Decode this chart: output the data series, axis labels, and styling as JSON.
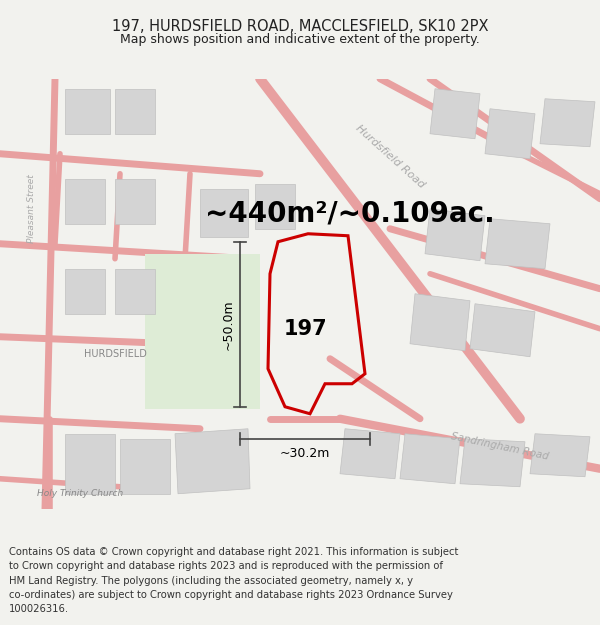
{
  "title_line1": "197, HURDSFIELD ROAD, MACCLESFIELD, SK10 2PX",
  "title_line2": "Map shows position and indicative extent of the property.",
  "area_text": "~440m²/~0.109ac.",
  "dim_vertical": "~50.0m",
  "dim_horizontal": "~30.2m",
  "label_197": "197",
  "label_hurdsfield": "HURDSFIELD",
  "label_pleasant_street": "Pleasant Street",
  "label_hurdsfield_road": "Hurdsfield Road",
  "label_sandringham_road": "Sandringham Road",
  "label_holy_trinity": "Holy Trinity Church",
  "footer_lines": [
    "Contains OS data © Crown copyright and database right 2021. This information is subject",
    "to Crown copyright and database rights 2023 and is reproduced with the permission of",
    "HM Land Registry. The polygons (including the associated geometry, namely x, y",
    "co-ordinates) are subject to Crown copyright and database rights 2023 Ordnance Survey",
    "100026316."
  ],
  "bg_color": "#f2f2ee",
  "map_bg": "#ffffff",
  "road_color": "#e8a0a0",
  "building_color": "#d4d4d4",
  "green_color": "#deecd6",
  "highlight_color": "#cc0000",
  "text_color": "#222222",
  "road_label_color": "#aaaaaa",
  "dim_line_color": "#444444",
  "title_fontsize": 10.5,
  "subtitle_fontsize": 9.0,
  "area_fontsize": 20,
  "footer_fontsize": 7.2,
  "label_fontsize": 7.5
}
